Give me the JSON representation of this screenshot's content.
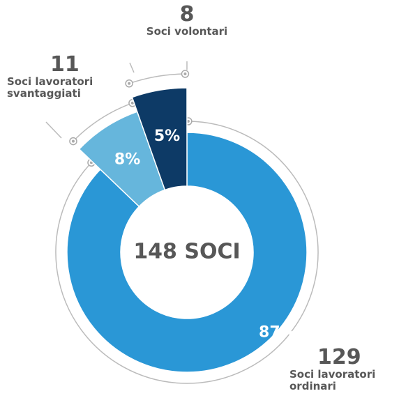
{
  "chart_data": {
    "type": "donut",
    "categories": [
      "Soci lavoratori ordinari",
      "Soci lavoratori svantaggiati",
      "Soci volontari"
    ],
    "values": [
      129,
      11,
      8
    ],
    "percent_labels": [
      "87%",
      "8%",
      "5%"
    ],
    "colors": [
      "#2a97d6",
      "#66b6dc",
      "#0d3a66"
    ],
    "center_label": "148 SOCI"
  }
}
